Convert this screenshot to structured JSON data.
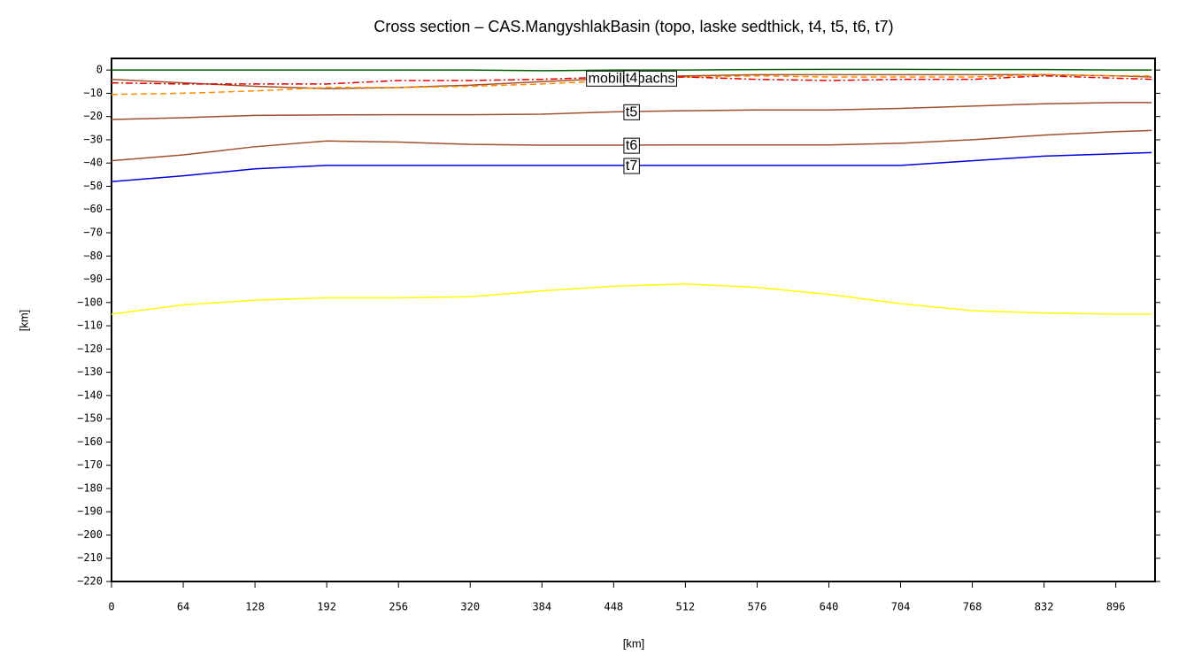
{
  "chart_data": {
    "type": "line",
    "title": "Cross section – CAS.MangyshlakBasin (topo, laske sedthick, t4, t5, t6, t7)",
    "xlabel": "[km]",
    "ylabel": "[km]",
    "x": [
      0,
      64,
      128,
      192,
      256,
      320,
      384,
      448,
      512,
      576,
      640,
      704,
      768,
      832,
      896,
      928
    ],
    "series": [
      {
        "color": "#006400",
        "dash": "solid",
        "values": [
          0,
          0,
          0,
          0,
          0,
          0,
          -0.3,
          0,
          0,
          0.2,
          0.3,
          0.3,
          0.2,
          0.2,
          0,
          0
        ]
      },
      {
        "name": "t4",
        "color": "#a0522d",
        "dash": "solid",
        "values": [
          -4,
          -5.5,
          -7,
          -8,
          -7.5,
          -6.5,
          -5,
          -3.5,
          -2.5,
          -2,
          -2,
          -2,
          -2,
          -2,
          -2.5,
          -3
        ]
      },
      {
        "color": "#ff8c00",
        "dash": "dashed",
        "values": [
          -10.5,
          -10,
          -9,
          -7.5,
          -7.5,
          -7,
          -6,
          -4.5,
          -3,
          -2.5,
          -3,
          -3,
          -3,
          -2,
          -2.5,
          -2.5
        ]
      },
      {
        "color": "#e00000",
        "dash": "dashdot",
        "values": [
          -5.5,
          -6,
          -6,
          -6,
          -4.5,
          -4.5,
          -4,
          -3,
          -3,
          -4,
          -4.5,
          -4,
          -4,
          -2.5,
          -3.5,
          -4
        ]
      },
      {
        "name": "t5",
        "color": "#a0522d",
        "dash": "solid",
        "values": [
          -21.3,
          -20.5,
          -19.5,
          -19.3,
          -19.2,
          -19.2,
          -19,
          -18,
          -17.5,
          -17.2,
          -17.2,
          -16.5,
          -15.5,
          -14.5,
          -14,
          -14
        ]
      },
      {
        "name": "t6",
        "color": "#a0522d",
        "dash": "solid",
        "values": [
          -39,
          -36.5,
          -33,
          -30.5,
          -31,
          -32,
          -32.3,
          -32.3,
          -32.2,
          -32.2,
          -32.2,
          -31.5,
          -30,
          -28,
          -26.5,
          -26
        ]
      },
      {
        "name": "t7",
        "color": "#0000dd",
        "dash": "solid",
        "values": [
          -48,
          -45.5,
          -42.5,
          -41,
          -41,
          -41,
          -41,
          -41,
          -41,
          -41,
          -41,
          -41,
          -39,
          -37,
          -36,
          -35.5
        ]
      },
      {
        "color": "#ffff00",
        "dash": "solid",
        "values": [
          -105,
          -101,
          -99,
          -98,
          -98,
          -97.5,
          -95,
          -93,
          -92,
          -93.5,
          -96.5,
          -100.5,
          -103.5,
          -104.5,
          -105,
          -105
        ]
      }
    ],
    "label_x": 464,
    "annotations": [
      {
        "text": "mobilitopachs",
        "x": 464,
        "y": -3.4
      }
    ],
    "xlim": [
      0,
      931
    ],
    "ylim": [
      -220,
      5
    ],
    "xticks": [
      0,
      64,
      128,
      192,
      256,
      320,
      384,
      448,
      512,
      576,
      640,
      704,
      768,
      832,
      896
    ],
    "yticks": [
      {
        "value": -220,
        "label": "−220"
      },
      {
        "value": -210,
        "label": "−210"
      },
      {
        "value": -200,
        "label": "−200"
      },
      {
        "value": -190,
        "label": "−190"
      },
      {
        "value": -180,
        "label": "−180"
      },
      {
        "value": -170,
        "label": "−170"
      },
      {
        "value": -160,
        "label": "−160"
      },
      {
        "value": -150,
        "label": "−150"
      },
      {
        "value": -140,
        "label": "−140"
      },
      {
        "value": -130,
        "label": "−130"
      },
      {
        "value": -120,
        "label": "−120"
      },
      {
        "value": -110,
        "label": "−110"
      },
      {
        "value": -100,
        "label": "−100"
      },
      {
        "value": -90,
        "label": "−90"
      },
      {
        "value": -80,
        "label": "−80"
      },
      {
        "value": -70,
        "label": "−70"
      },
      {
        "value": -60,
        "label": "−60"
      },
      {
        "value": -50,
        "label": "−50"
      },
      {
        "value": -40,
        "label": "−40"
      },
      {
        "value": -30,
        "label": "−30"
      },
      {
        "value": -20,
        "label": "−20"
      },
      {
        "value": -10,
        "label": "−10"
      },
      0
    ]
  }
}
